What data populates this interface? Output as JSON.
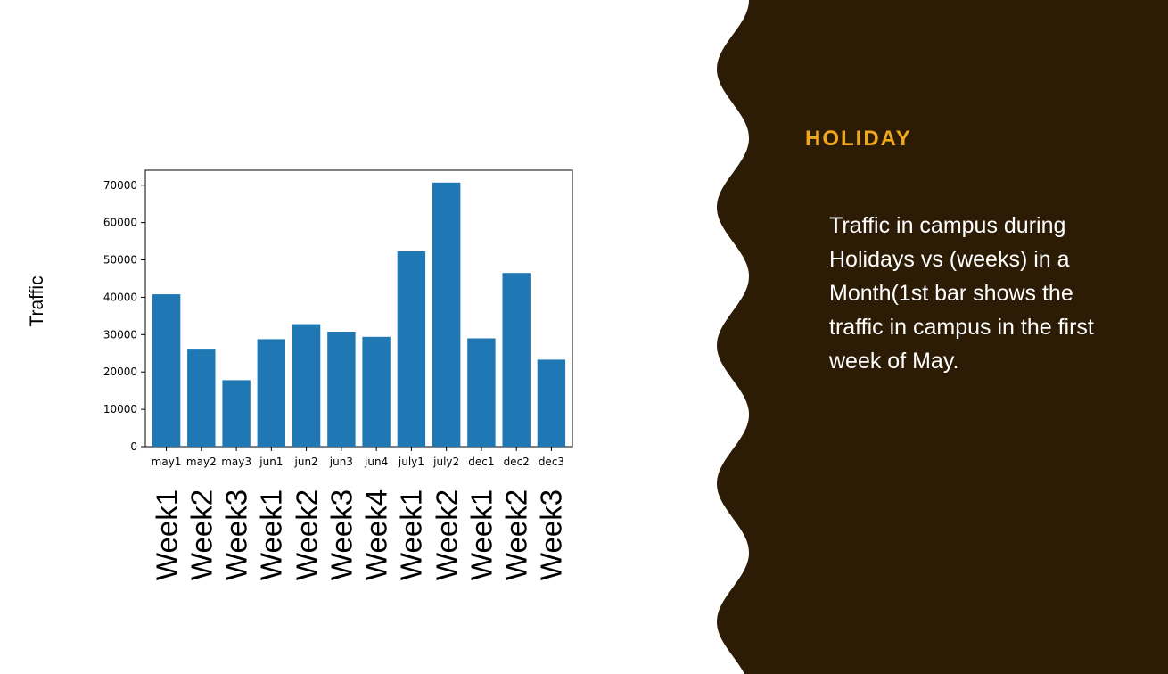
{
  "heading": "HOLIDAY",
  "body_text": "Traffic in campus during Holidays vs (weeks) in a Month(1st bar shows the traffic in campus in the first week of May.",
  "colors": {
    "panel": "#2c1c05",
    "heading": "#f0a81e",
    "bar": "#1f77b4"
  },
  "y_title": "Traffic",
  "week_labels": [
    "Week1",
    "Week2",
    "Week3",
    "Week1",
    "Week2",
    "Week3",
    "Week4",
    "Week1",
    "Week2",
    "Week1",
    "Week2",
    "Week3"
  ],
  "chart_data": {
    "type": "bar",
    "categories": [
      "may1",
      "may2",
      "may3",
      "jun1",
      "jun2",
      "jun3",
      "jun4",
      "july1",
      "july2",
      "dec1",
      "dec2",
      "dec3"
    ],
    "values": [
      40800,
      26000,
      17800,
      28800,
      32800,
      30800,
      29400,
      52300,
      70700,
      29000,
      46500,
      23300
    ],
    "ylim": [
      0,
      74000
    ],
    "yticks": [
      0,
      10000,
      20000,
      30000,
      40000,
      50000,
      60000,
      70000
    ],
    "ytick_labels": [
      "0",
      "10000",
      "20000",
      "30000",
      "40000",
      "50000",
      "60000",
      "70000"
    ],
    "ylabel": "Traffic",
    "grid": false,
    "legend": "none"
  }
}
